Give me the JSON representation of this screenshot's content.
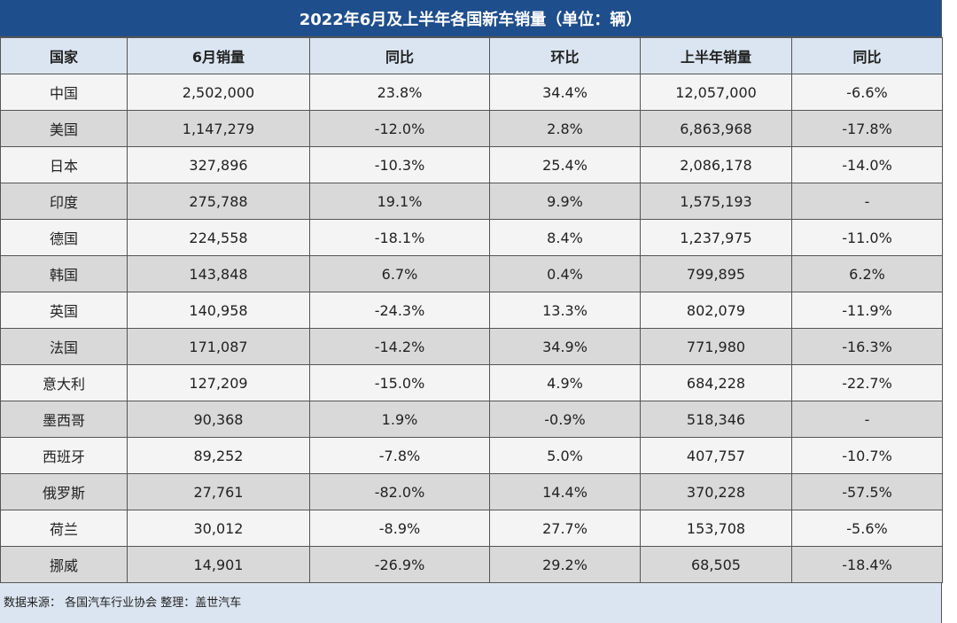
{
  "title": "2022年6月及上半年各国新车销量（单位：辆）",
  "headers": [
    "国家",
    "6月销量",
    "同比",
    "环比",
    "上半年销量",
    "同比"
  ],
  "rows": [
    {
      "country": "中国",
      "june": "2,502,000",
      "yoy": "23.8%",
      "mom": "34.4%",
      "h1": "12,057,000",
      "h1_yoy": "-6.6%"
    },
    {
      "country": "美国",
      "june": "1,147,279",
      "yoy": "-12.0%",
      "mom": "2.8%",
      "h1": "6,863,968",
      "h1_yoy": "-17.8%"
    },
    {
      "country": "日本",
      "june": "327,896",
      "yoy": "-10.3%",
      "mom": "25.4%",
      "h1": "2,086,178",
      "h1_yoy": "-14.0%"
    },
    {
      "country": "印度",
      "june": "275,788",
      "yoy": "19.1%",
      "mom": "9.9%",
      "h1": "1,575,193",
      "h1_yoy": "-"
    },
    {
      "country": "德国",
      "june": "224,558",
      "yoy": "-18.1%",
      "mom": "8.4%",
      "h1": "1,237,975",
      "h1_yoy": "-11.0%"
    },
    {
      "country": "韩国",
      "june": "143,848",
      "yoy": "6.7%",
      "mom": "0.4%",
      "h1": "799,895",
      "h1_yoy": "6.2%"
    },
    {
      "country": "英国",
      "june": "140,958",
      "yoy": "-24.3%",
      "mom": "13.3%",
      "h1": "802,079",
      "h1_yoy": "-11.9%"
    },
    {
      "country": "法国",
      "june": "171,087",
      "yoy": "-14.2%",
      "mom": "34.9%",
      "h1": "771,980",
      "h1_yoy": "-16.3%"
    },
    {
      "country": "意大利",
      "june": "127,209",
      "yoy": "-15.0%",
      "mom": "4.9%",
      "h1": "684,228",
      "h1_yoy": "-22.7%"
    },
    {
      "country": "墨西哥",
      "june": "90,368",
      "yoy": "1.9%",
      "mom": "-0.9%",
      "h1": "518,346",
      "h1_yoy": "-"
    },
    {
      "country": "西班牙",
      "june": "89,252",
      "yoy": "-7.8%",
      "mom": "5.0%",
      "h1": "407,757",
      "h1_yoy": "-10.7%"
    },
    {
      "country": "俄罗斯",
      "june": "27,761",
      "yoy": "-82.0%",
      "mom": "14.4%",
      "h1": "370,228",
      "h1_yoy": "-57.5%"
    },
    {
      "country": "荷兰",
      "june": "30,012",
      "yoy": "-8.9%",
      "mom": "27.7%",
      "h1": "153,708",
      "h1_yoy": "-5.6%"
    },
    {
      "country": "挪威",
      "june": "14,901",
      "yoy": "-26.9%",
      "mom": "29.2%",
      "h1": "68,505",
      "h1_yoy": "-18.4%"
    }
  ],
  "footer": "数据来源：  各国汽车行业协会 整理：盖世汽车",
  "colors": {
    "title_bg": "#1f4e8c",
    "header_bg": "#dbe5f1",
    "row_light": "#f4f4f4",
    "row_dark": "#d9d9d9",
    "negative": "#22a852",
    "positive": "#e01e1e"
  }
}
